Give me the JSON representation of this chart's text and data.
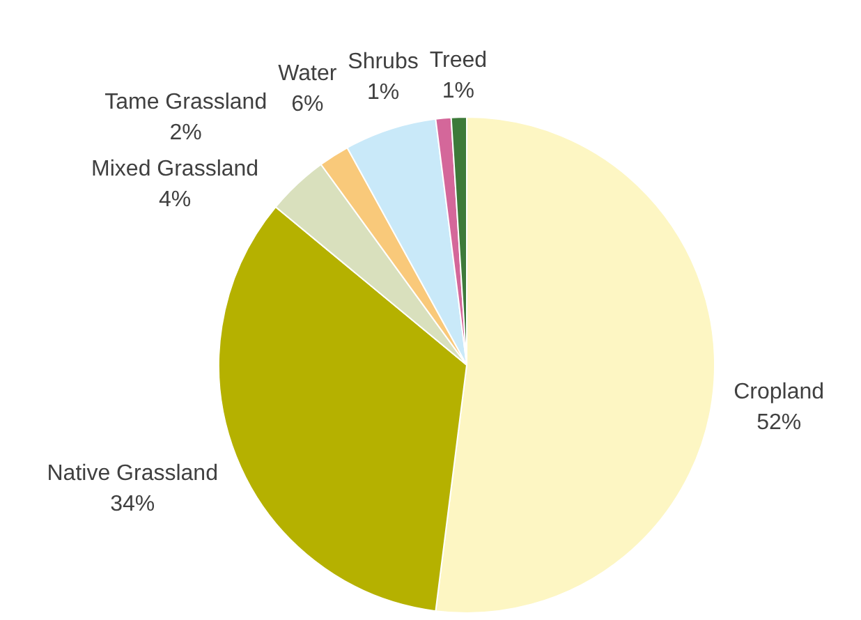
{
  "chart_data": {
    "type": "pie",
    "categories": [
      "Cropland",
      "Native Grassland",
      "Mixed Grassland",
      "Tame Grassland",
      "Water",
      "Shrubs",
      "Treed"
    ],
    "values": [
      52,
      34,
      4,
      2,
      6,
      1,
      1
    ],
    "colors": [
      "#fdf6c3",
      "#b5b100",
      "#d9e0bd",
      "#f9c97a",
      "#c9e9f9",
      "#d4679a",
      "#3d7a3a"
    ],
    "value_labels": [
      "52%",
      "34%",
      "4%",
      "2%",
      "6%",
      "1%",
      "1%"
    ],
    "legend": false
  }
}
